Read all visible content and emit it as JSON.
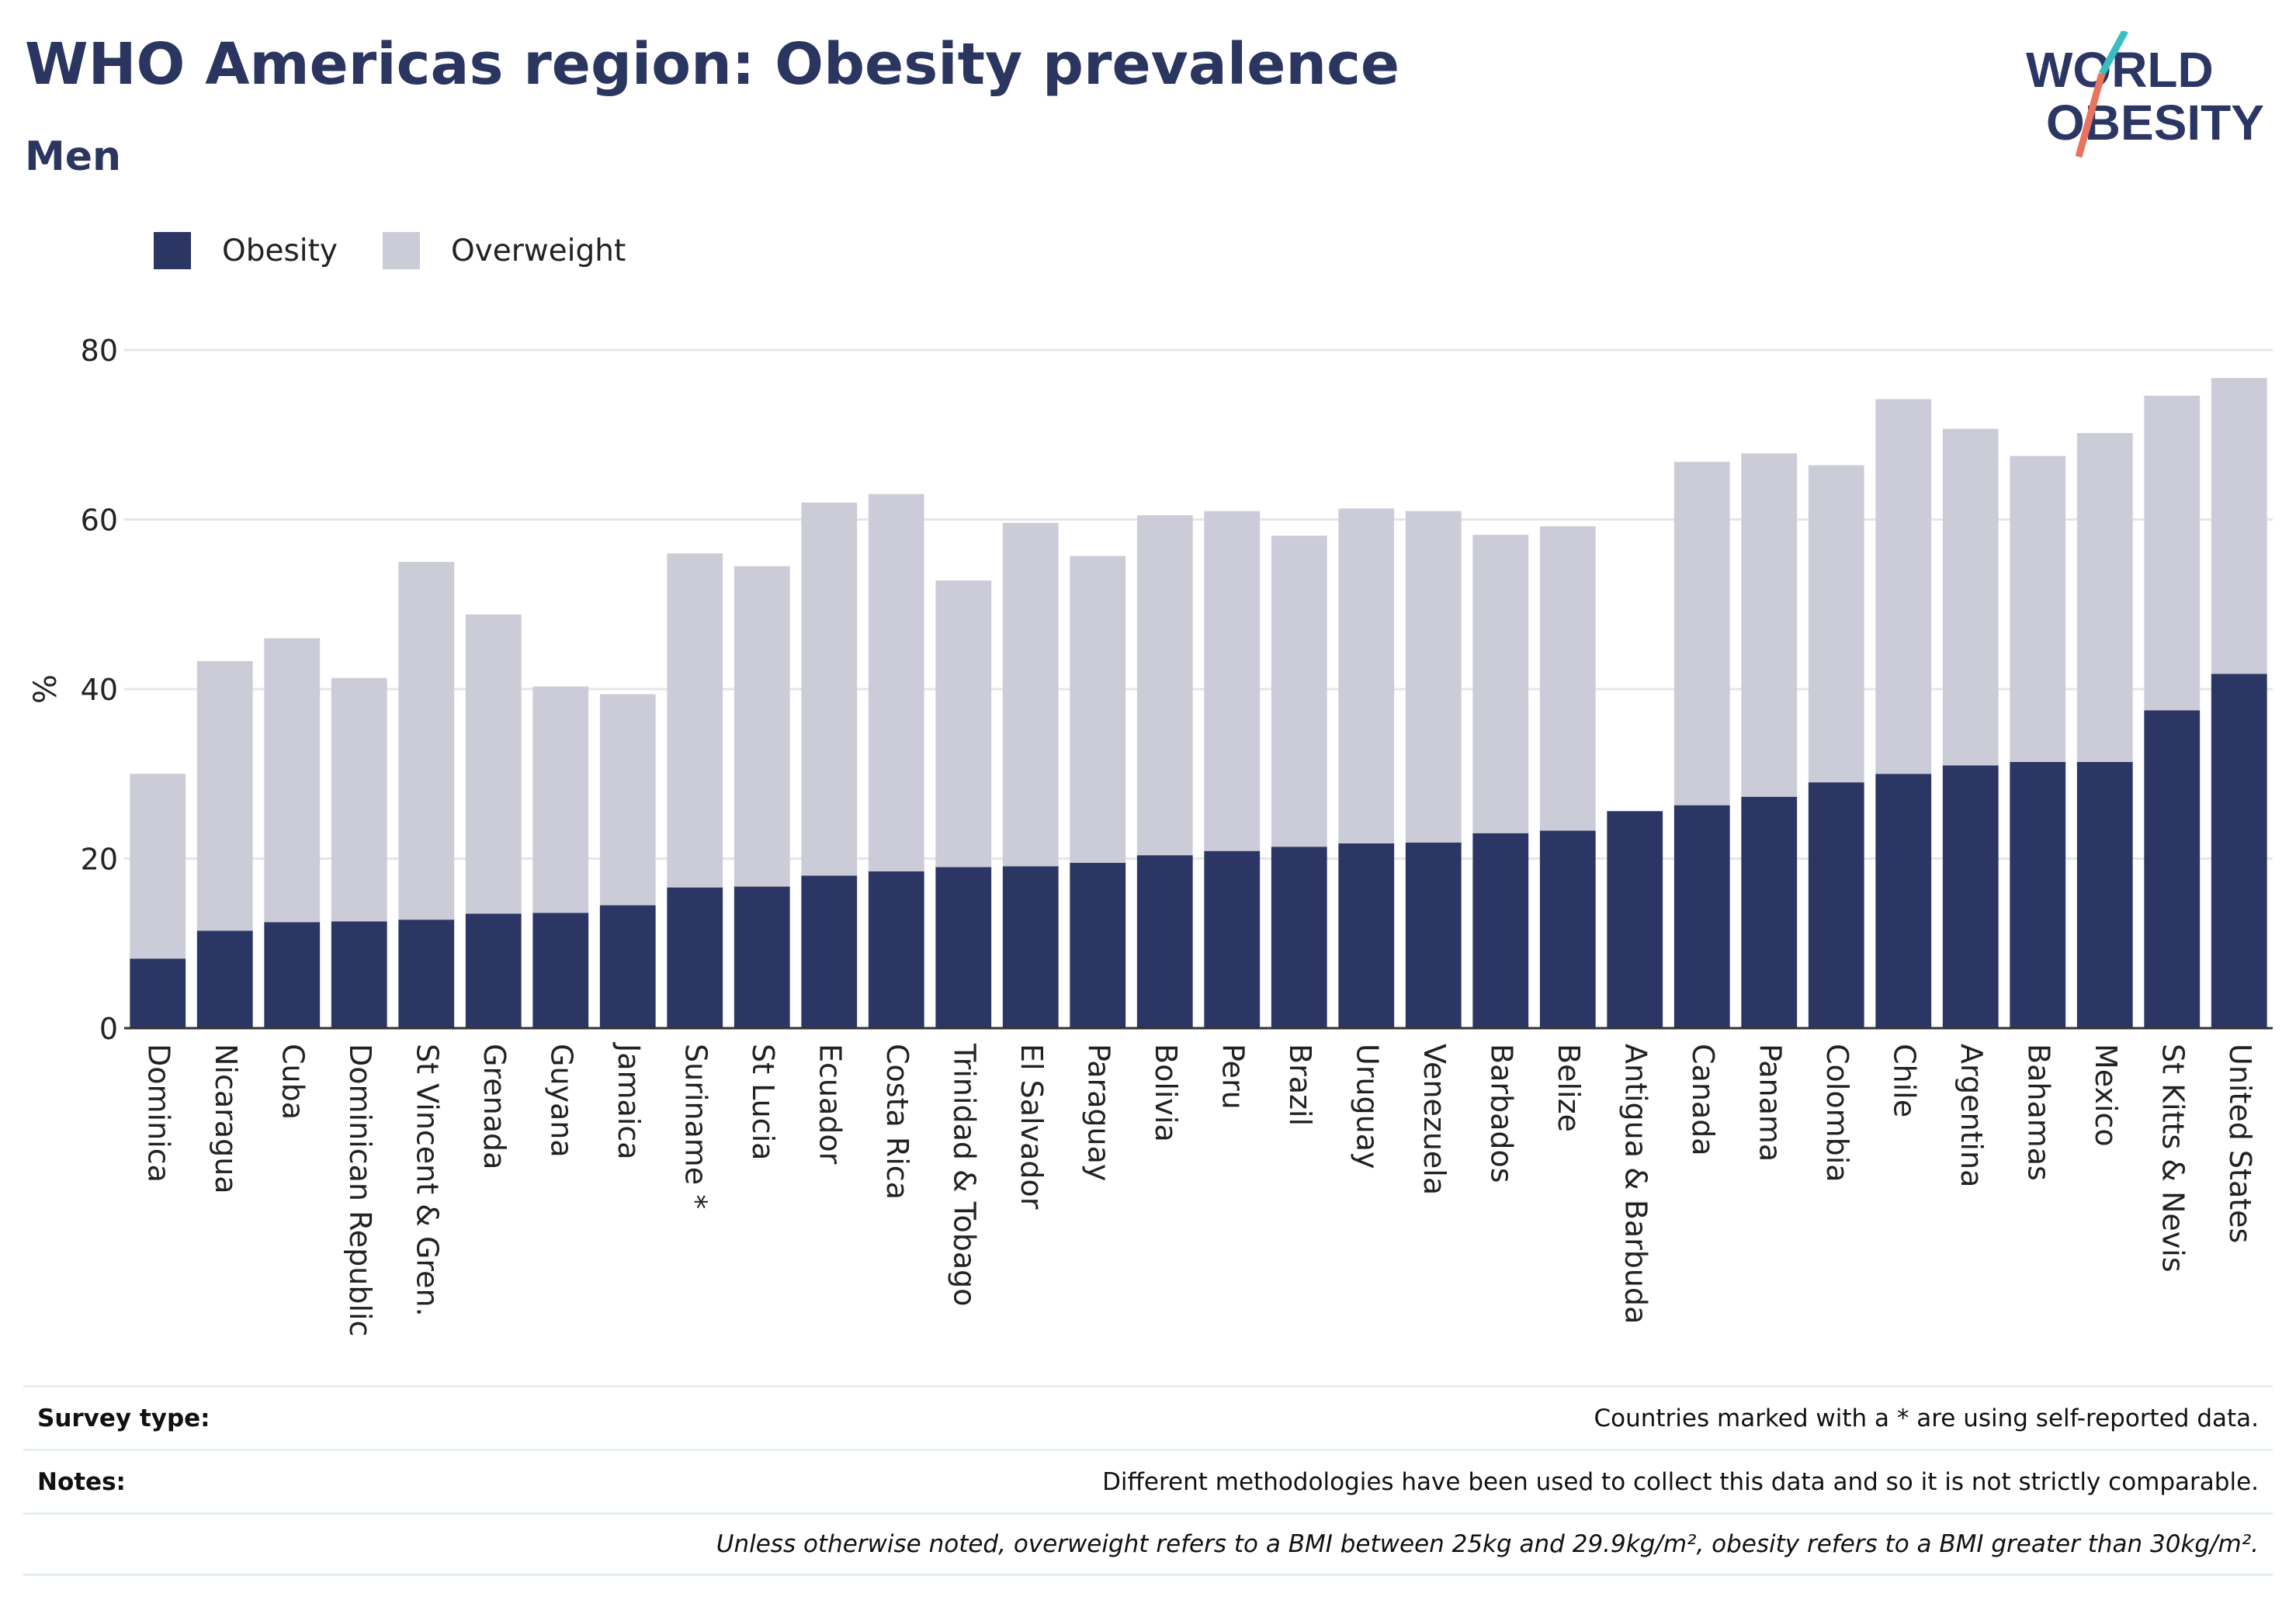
{
  "title": "WHO Americas region: Obesity prevalence",
  "subtitle": "Men",
  "logo": {
    "line1": "WORLD",
    "line2": "OBESITY",
    "name": "world-obesity-logo"
  },
  "legend": [
    {
      "label": "Obesity",
      "color": "#2b3664"
    },
    {
      "label": "Overweight",
      "color": "#cbccd8"
    }
  ],
  "chart_data": {
    "type": "bar",
    "stacked": true,
    "ylabel": "%",
    "ylim": [
      0,
      80
    ],
    "yticks": [
      0,
      20,
      40,
      60,
      80
    ],
    "grid": true,
    "legend_position": "top-left",
    "categories": [
      "Dominica",
      "Nicaragua",
      "Cuba",
      "Dominican Republic",
      "St Vincent & Gren.",
      "Grenada",
      "Guyana",
      "Jamaica",
      "Suriname *",
      "St Lucia",
      "Ecuador",
      "Costa Rica",
      "Trinidad & Tobago",
      "El Salvador",
      "Paraguay",
      "Bolivia",
      "Peru",
      "Brazil",
      "Uruguay",
      "Venezuela",
      "Barbados",
      "Belize",
      "Antigua & Barbuda",
      "Canada",
      "Panama",
      "Colombia",
      "Chile",
      "Argentina",
      "Bahamas",
      "Mexico",
      "St Kitts & Nevis",
      "United States"
    ],
    "series": [
      {
        "name": "Obesity",
        "color": "#2b3664",
        "values": [
          8.2,
          11.5,
          12.5,
          12.6,
          12.8,
          13.5,
          13.6,
          14.5,
          16.6,
          16.7,
          18.0,
          18.5,
          19.0,
          19.1,
          19.5,
          20.4,
          20.9,
          21.4,
          21.8,
          21.9,
          23.0,
          23.3,
          25.6,
          26.3,
          27.3,
          29.0,
          30.0,
          31.0,
          31.4,
          31.4,
          37.5,
          41.8
        ]
      },
      {
        "name": "Overweight",
        "color": "#cbccd8",
        "values": [
          21.8,
          31.8,
          33.5,
          28.7,
          42.2,
          35.3,
          26.7,
          24.9,
          39.4,
          37.8,
          44.0,
          44.5,
          33.8,
          40.5,
          36.2,
          40.1,
          40.1,
          36.7,
          39.5,
          39.1,
          35.2,
          35.9,
          0,
          40.5,
          40.5,
          37.4,
          44.2,
          39.7,
          36.1,
          38.8,
          37.1,
          34.9
        ]
      }
    ]
  },
  "notes": {
    "survey_label": "Survey type:",
    "survey_text": "Countries marked with a * are using self-reported data.",
    "notes_label": "Notes:",
    "notes_text": "Different methodologies have been used to collect this data and so it is not strictly comparable.",
    "definition_text": "Unless otherwise noted, overweight refers to a BMI between 25kg and 29.9kg/m², obesity refers to a BMI greater than 30kg/m²."
  }
}
